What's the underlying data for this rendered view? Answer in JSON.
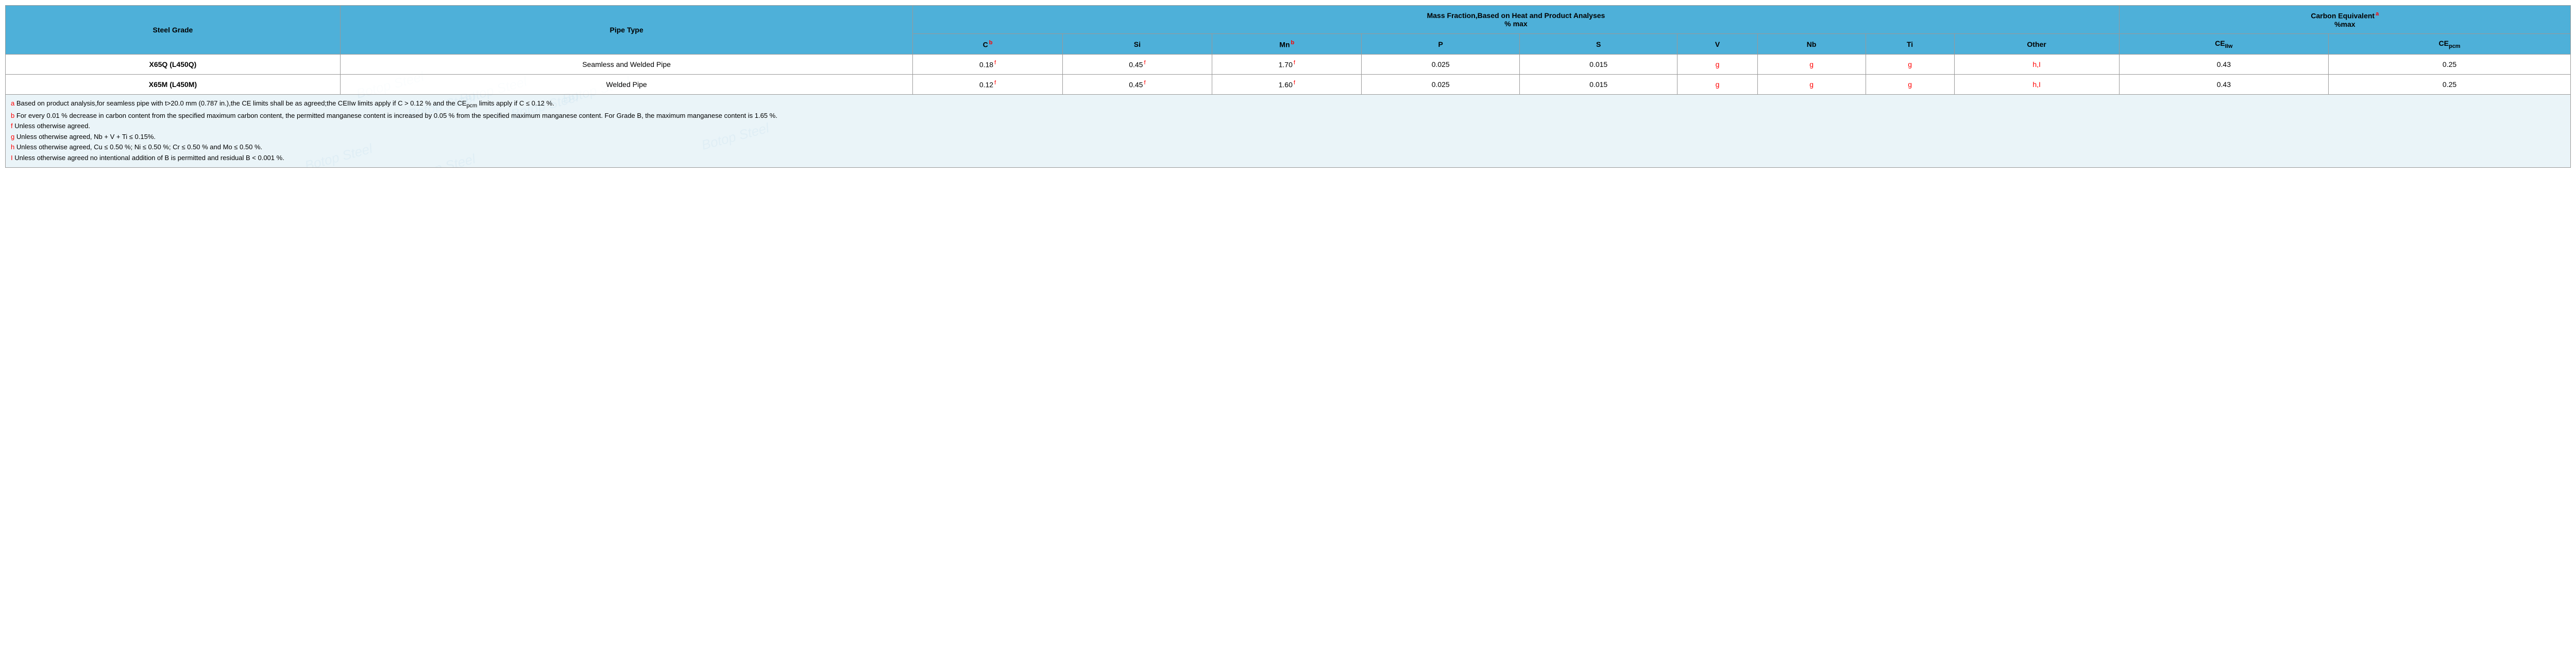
{
  "watermark_text": "Botop Steel",
  "header": {
    "steel_grade": "Steel Grade",
    "pipe_type": "Pipe Type",
    "mass_fraction_title": "Mass Fraction,Based on Heat and Product Analyses",
    "mass_fraction_sub": "% max",
    "carbon_equiv_title": "Carbon Equivalent",
    "carbon_equiv_sup": "a",
    "carbon_equiv_sub": "%max",
    "cols": {
      "c": "C",
      "c_sup": "b",
      "si": "Si",
      "mn": "Mn",
      "mn_sup": "b",
      "p": "P",
      "s": "S",
      "v": "V",
      "nb": "Nb",
      "ti": "Ti",
      "other": "Other",
      "ce_iiw": "CE",
      "ce_iiw_sub": "IIw",
      "ce_pcm": "CE",
      "ce_pcm_sub": "pcm"
    }
  },
  "rows": [
    {
      "grade": "X65Q (L450Q)",
      "pipe": "Seamless and Welded Pipe",
      "c": "0.18",
      "c_sup": "f",
      "si": "0.45",
      "si_sup": "f",
      "mn": "1.70",
      "mn_sup": "f",
      "p": "0.025",
      "s": "0.015",
      "v": "g",
      "nb": "g",
      "ti": "g",
      "other": "h,I",
      "ce_iiw": "0.43",
      "ce_pcm": "0.25"
    },
    {
      "grade": "X65M (L450M)",
      "pipe": "Welded Pipe",
      "c": "0.12",
      "c_sup": "f",
      "si": "0.45",
      "si_sup": "f",
      "mn": "1.60",
      "mn_sup": "f",
      "p": "0.025",
      "s": "0.015",
      "v": "g",
      "nb": "g",
      "ti": "g",
      "other": "h,I",
      "ce_iiw": "0.43",
      "ce_pcm": "0.25"
    }
  ],
  "footnotes": {
    "a": {
      "key": "a",
      "text": " Based on product analysis,for seamless pipe with t>20.0 mm (0.787 in.),the CE limits shall be as agreed;the CEIIw limits apply if C > 0.12 % and the CE",
      "pcm": "pcm",
      "text2": " limits apply if C ≤ 0.12 %."
    },
    "b": {
      "key": "b",
      "text": " For every 0.01 % decrease in carbon content from the specified maximum carbon content, the permitted manganese content is increased by 0.05 % from the specified maximum manganese content. For Grade B, the maximum manganese content is 1.65 %."
    },
    "f": {
      "key": "f",
      "text": " Unless otherwise agreed."
    },
    "g": {
      "key": "g",
      "text": " Unless otherwise agreed, Nb + V + Ti ≤ 0.15%."
    },
    "h": {
      "key": "h",
      "text": " Unless otherwise agreed, Cu ≤ 0.50 %; Ni ≤ 0.50 %; Cr ≤ 0.50 % and Mo ≤ 0.50 %."
    },
    "i": {
      "key": "I",
      "text": " Unless otherwise agreed no intentional addition of B is permitted and residual B < 0.001 %."
    }
  },
  "style": {
    "header_bg": "#4eb0d9",
    "border_color": "#999999",
    "footnote_bg": "rgba(220,236,244,0.6)",
    "red": "#ff0000"
  }
}
